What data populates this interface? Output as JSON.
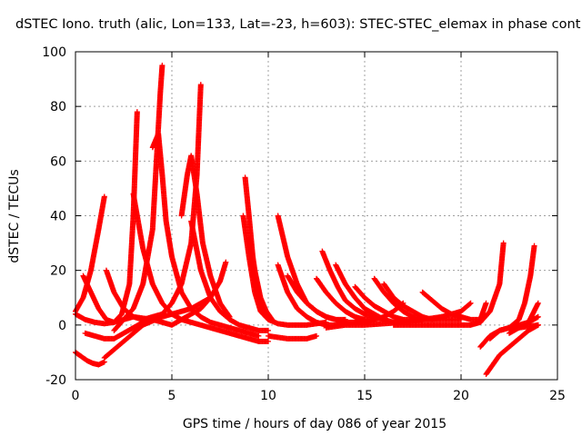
{
  "chart_data": {
    "type": "scatter",
    "title": "dSTEC Iono. truth (alic, Lon=133, Lat=-23, h=603): STEC-STEC_elemax in phase cont",
    "xlabel": "GPS time / hours of day 086 of year 2015",
    "ylabel": "dSTEC  / TECUs",
    "xlim": [
      0,
      25
    ],
    "ylim": [
      -20,
      100
    ],
    "xticks": [
      0,
      5,
      10,
      15,
      20,
      25
    ],
    "yticks": [
      -20,
      0,
      20,
      40,
      60,
      80,
      100
    ],
    "xtick_labels": [
      "0",
      "5",
      "10",
      "15",
      "20",
      "25"
    ],
    "ytick_labels": [
      "-20",
      "0",
      "20",
      "40",
      "60",
      "80",
      "100"
    ],
    "grid": true,
    "marker": "+",
    "color": "#ff0000",
    "series": [
      {
        "x": [
          0.0,
          0.3,
          0.6,
          0.9,
          1.2,
          1.5
        ],
        "y": [
          -10,
          -11.5,
          -13,
          -14,
          -14.5,
          -13.5
        ]
      },
      {
        "x": [
          1.5,
          2.0,
          2.5,
          3.0,
          3.5,
          4.0,
          4.5,
          5.0,
          5.5,
          6.0,
          6.5,
          7.0
        ],
        "y": [
          -12,
          -9,
          -6,
          -3,
          0,
          1.5,
          3,
          4,
          5,
          6,
          8,
          10
        ]
      },
      {
        "x": [
          0.0,
          0.4,
          0.8,
          1.2,
          1.5
        ],
        "y": [
          5,
          10,
          20,
          35,
          47
        ]
      },
      {
        "x": [
          0.0,
          0.5,
          1.0,
          1.5,
          2.0,
          2.5,
          3.0,
          3.5,
          4.0
        ],
        "y": [
          4,
          2,
          1,
          0.5,
          1,
          2,
          3,
          2.5,
          2
        ]
      },
      {
        "x": [
          0.4,
          0.8,
          1.2,
          1.6,
          2.0,
          2.4,
          2.8,
          3.0,
          3.2
        ],
        "y": [
          18,
          12,
          6,
          2,
          1,
          4,
          15,
          40,
          78
        ]
      },
      {
        "x": [
          3.0,
          3.5,
          4.0,
          4.5,
          5.0,
          5.5,
          6.0,
          6.5,
          7.0,
          7.5,
          8.0,
          8.5,
          9.0,
          9.5,
          10.0
        ],
        "y": [
          48,
          28,
          15,
          8,
          4,
          2,
          1,
          0,
          -1,
          -2,
          -3,
          -4,
          -5,
          -6,
          -6
        ]
      },
      {
        "x": [
          4.0,
          4.3,
          4.5,
          4.7,
          5.0,
          5.5,
          6.0,
          6.5,
          7.0,
          7.5,
          8.0,
          8.5,
          9.0,
          9.5
        ],
        "y": [
          65,
          70,
          55,
          38,
          25,
          12,
          6,
          3,
          1,
          0,
          -1,
          -2,
          -3,
          -4
        ]
      },
      {
        "x": [
          2.0,
          2.5,
          3.0,
          3.5,
          4.0,
          4.2,
          4.4,
          4.5
        ],
        "y": [
          -2,
          2,
          6,
          15,
          35,
          60,
          85,
          95
        ]
      },
      {
        "x": [
          1.6,
          2.0,
          2.5,
          3.0,
          3.5,
          4.0,
          4.5,
          5.0,
          5.5,
          6.0,
          6.3,
          6.5
        ],
        "y": [
          20,
          12,
          6,
          3,
          2,
          3,
          4,
          8,
          15,
          30,
          55,
          88
        ]
      },
      {
        "x": [
          6.0,
          6.5,
          7.0,
          7.5,
          8.0,
          8.5,
          9.0,
          9.5,
          10.0
        ],
        "y": [
          38,
          20,
          10,
          5,
          2,
          0,
          -1,
          -2,
          -2
        ]
      },
      {
        "x": [
          5.5,
          5.8,
          6.0,
          6.3,
          6.6,
          7.0,
          7.5,
          8.0
        ],
        "y": [
          40,
          55,
          62,
          48,
          30,
          18,
          8,
          3
        ]
      },
      {
        "x": [
          0.5,
          1.0,
          1.5,
          2.0,
          2.5,
          3.0,
          3.5,
          4.0,
          4.5,
          5.0,
          5.5,
          6.0,
          6.5,
          7.0,
          7.5,
          7.8
        ],
        "y": [
          -3,
          -4,
          -5,
          -5,
          -3,
          -1,
          1,
          2,
          1,
          0,
          2,
          4,
          6,
          10,
          16,
          23
        ]
      },
      {
        "x": [
          8.7,
          9.0,
          9.3,
          9.6,
          10.0,
          10.5,
          11.0,
          11.5,
          12.0,
          12.5,
          13.0
        ],
        "y": [
          40,
          25,
          12,
          5,
          2,
          0.5,
          0,
          0,
          0,
          0.5,
          1
        ]
      },
      {
        "x": [
          8.8,
          9.0,
          9.2,
          9.4,
          9.6,
          9.8
        ],
        "y": [
          54,
          40,
          25,
          15,
          8,
          4
        ]
      },
      {
        "x": [
          9.0,
          9.3,
          9.6,
          9.9,
          10.2
        ],
        "y": [
          32,
          20,
          10,
          5,
          2
        ]
      },
      {
        "x": [
          10.5,
          11.0,
          11.5,
          12.0,
          12.5,
          13.0,
          13.5,
          14.0
        ],
        "y": [
          40,
          25,
          15,
          8,
          5,
          3,
          2,
          2
        ]
      },
      {
        "x": [
          10.5,
          11.0,
          11.5,
          12.0,
          12.5,
          13.0,
          13.5,
          14.0,
          14.5,
          15.0
        ],
        "y": [
          22,
          12,
          6,
          3,
          1,
          0,
          0,
          0.5,
          1,
          2
        ]
      },
      {
        "x": [
          11.0,
          11.5,
          12.0,
          12.5,
          13.0,
          13.5,
          14.0,
          14.5,
          15.0,
          15.5
        ],
        "y": [
          18,
          12,
          8,
          5,
          3,
          2,
          1,
          1,
          1,
          2
        ]
      },
      {
        "x": [
          12.8,
          13.2,
          13.6,
          14.0,
          14.5,
          15.0,
          15.5,
          16.0
        ],
        "y": [
          27,
          20,
          14,
          9,
          6,
          4,
          3,
          2
        ]
      },
      {
        "x": [
          12.5,
          13.0,
          13.5,
          14.0,
          14.5,
          15.0,
          15.5,
          16.0,
          16.5,
          17.0
        ],
        "y": [
          17,
          12,
          8,
          5,
          3,
          2,
          2,
          3,
          5,
          8
        ]
      },
      {
        "x": [
          13.5,
          14.0,
          14.5,
          15.0,
          15.5,
          16.0,
          16.5,
          17.0
        ],
        "y": [
          22,
          15,
          10,
          6,
          4,
          2,
          1,
          1
        ]
      },
      {
        "x": [
          14.5,
          15.0,
          15.5,
          16.0,
          16.5,
          17.0,
          17.5,
          18.0
        ],
        "y": [
          14,
          10,
          7,
          5,
          3,
          2,
          2,
          2
        ]
      },
      {
        "x": [
          15.5,
          16.0,
          16.5,
          17.0,
          17.5,
          18.0,
          18.5,
          19.0
        ],
        "y": [
          17,
          12,
          8,
          5,
          3,
          2,
          2,
          3
        ]
      },
      {
        "x": [
          16.0,
          16.5,
          17.0,
          17.5,
          18.0,
          18.5,
          19.0,
          19.5,
          20.0
        ],
        "y": [
          15,
          10,
          7,
          5,
          3,
          2,
          2,
          2,
          2
        ]
      },
      {
        "x": [
          18.0,
          18.5,
          19.0,
          19.5,
          20.0,
          20.5,
          21.0,
          21.3
        ],
        "y": [
          12,
          9,
          6,
          4,
          3,
          2,
          2,
          8
        ]
      },
      {
        "x": [
          13.0,
          14.0,
          15.0,
          16.0,
          17.0,
          18.0,
          19.0,
          20.0,
          20.5
        ],
        "y": [
          -1,
          0,
          0,
          0.5,
          1,
          2,
          3,
          5,
          8
        ]
      },
      {
        "x": [
          10.0,
          11.0,
          12.0,
          12.5
        ],
        "y": [
          -4,
          -5,
          -5,
          -4
        ]
      },
      {
        "x": [
          16.5,
          17.0,
          17.5,
          18.0,
          18.5,
          19.0,
          19.5,
          20.0,
          20.5,
          21.0,
          21.5,
          22.0,
          22.2
        ],
        "y": [
          0,
          0,
          0,
          0,
          0,
          0,
          0,
          0,
          0,
          1,
          5,
          15,
          30
        ]
      },
      {
        "x": [
          21.0,
          21.5,
          22.0,
          22.5,
          23.0,
          23.5,
          24.0
        ],
        "y": [
          -8,
          -4,
          -2,
          -1,
          -1,
          -0.5,
          0
        ]
      },
      {
        "x": [
          21.3,
          21.7,
          22.0,
          22.5,
          23.0,
          23.5,
          24.0
        ],
        "y": [
          -18,
          -14,
          -11,
          -8,
          -5,
          -2,
          0
        ]
      },
      {
        "x": [
          21.5,
          22.0,
          22.5,
          23.0,
          23.3,
          23.6,
          23.8
        ],
        "y": [
          -5,
          -2,
          -1,
          2,
          8,
          18,
          29
        ]
      },
      {
        "x": [
          22.0,
          22.5,
          23.0,
          23.5,
          24.0
        ],
        "y": [
          -2,
          -1,
          0,
          1,
          8
        ]
      },
      {
        "x": [
          22.5,
          23.0,
          23.5,
          24.0
        ],
        "y": [
          -3,
          -1,
          1,
          3
        ]
      }
    ]
  }
}
